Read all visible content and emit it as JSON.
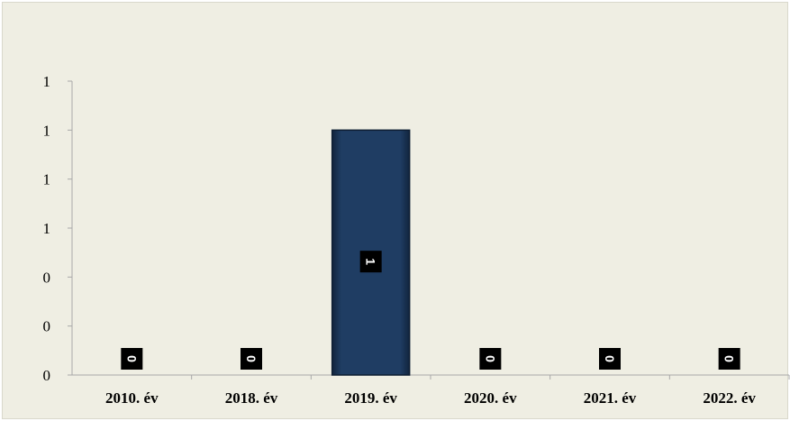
{
  "chart_data": {
    "type": "bar",
    "categories": [
      "2010. év",
      "2018. év",
      "2019. év",
      "2020. év",
      "2021. év",
      "2022. év"
    ],
    "values": [
      0,
      0,
      1,
      0,
      0,
      0
    ],
    "data_labels": [
      "0",
      "0",
      "1",
      "0",
      "0",
      "0"
    ],
    "y_tick_labels": [
      "0",
      "0",
      "0",
      "1",
      "1",
      "1",
      "1"
    ],
    "ylim": [
      0,
      1.2
    ],
    "title": "",
    "xlabel": "",
    "ylabel": "",
    "grid": false,
    "legend": "none",
    "colors": {
      "background": "#efeee3",
      "bar": "#1f3d63",
      "bar_edge": "#0e1e33",
      "label_box": "#000000",
      "axis": "#a8a8a8"
    }
  }
}
